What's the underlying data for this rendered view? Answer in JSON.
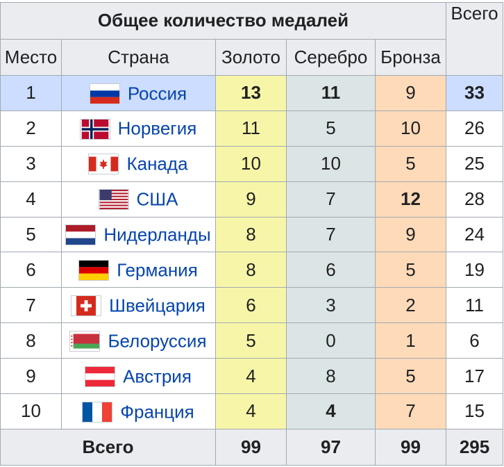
{
  "title": "Общее количество медалей",
  "headers": {
    "place": "Место",
    "country": "Страна",
    "gold": "Золото",
    "silver": "Серебро",
    "bronze": "Бронза",
    "total": "Всего"
  },
  "rows": [
    {
      "place": "1",
      "country": "Россия",
      "gold": "13",
      "silver": "11",
      "bronze": "9",
      "total": "33",
      "flag_icon": "russia-flag-icon"
    },
    {
      "place": "2",
      "country": "Норвегия",
      "gold": "11",
      "silver": "5",
      "bronze": "10",
      "total": "26",
      "flag_icon": "norway-flag-icon"
    },
    {
      "place": "3",
      "country": "Канада",
      "gold": "10",
      "silver": "10",
      "bronze": "5",
      "total": "25",
      "flag_icon": "canada-flag-icon"
    },
    {
      "place": "4",
      "country": "США",
      "gold": "9",
      "silver": "7",
      "bronze": "12",
      "total": "28",
      "flag_icon": "usa-flag-icon"
    },
    {
      "place": "5",
      "country": "Нидерланды",
      "gold": "8",
      "silver": "7",
      "bronze": "9",
      "total": "24",
      "flag_icon": "netherlands-flag-icon"
    },
    {
      "place": "6",
      "country": "Германия",
      "gold": "8",
      "silver": "6",
      "bronze": "5",
      "total": "19",
      "flag_icon": "germany-flag-icon"
    },
    {
      "place": "7",
      "country": "Швейцария",
      "gold": "6",
      "silver": "3",
      "bronze": "2",
      "total": "11",
      "flag_icon": "switzerland-flag-icon"
    },
    {
      "place": "8",
      "country": "Белоруссия",
      "gold": "5",
      "silver": "0",
      "bronze": "1",
      "total": "6",
      "flag_icon": "belarus-flag-icon"
    },
    {
      "place": "9",
      "country": "Австрия",
      "gold": "4",
      "silver": "8",
      "bronze": "5",
      "total": "17",
      "flag_icon": "austria-flag-icon"
    },
    {
      "place": "10",
      "country": "Франция",
      "gold": "4",
      "silver": "4",
      "bronze": "7",
      "total": "15",
      "flag_icon": "france-flag-icon"
    }
  ],
  "footer": {
    "label": "Всего",
    "gold": "99",
    "silver": "97",
    "bronze": "99",
    "total": "295"
  },
  "colors": {
    "gold_cell": "#f7f6a8",
    "silver_cell": "#dce5e5",
    "bronze_cell": "#ffdab9",
    "host_row": "#ccddff",
    "header": "#eaecf0",
    "link": "#0645ad"
  }
}
